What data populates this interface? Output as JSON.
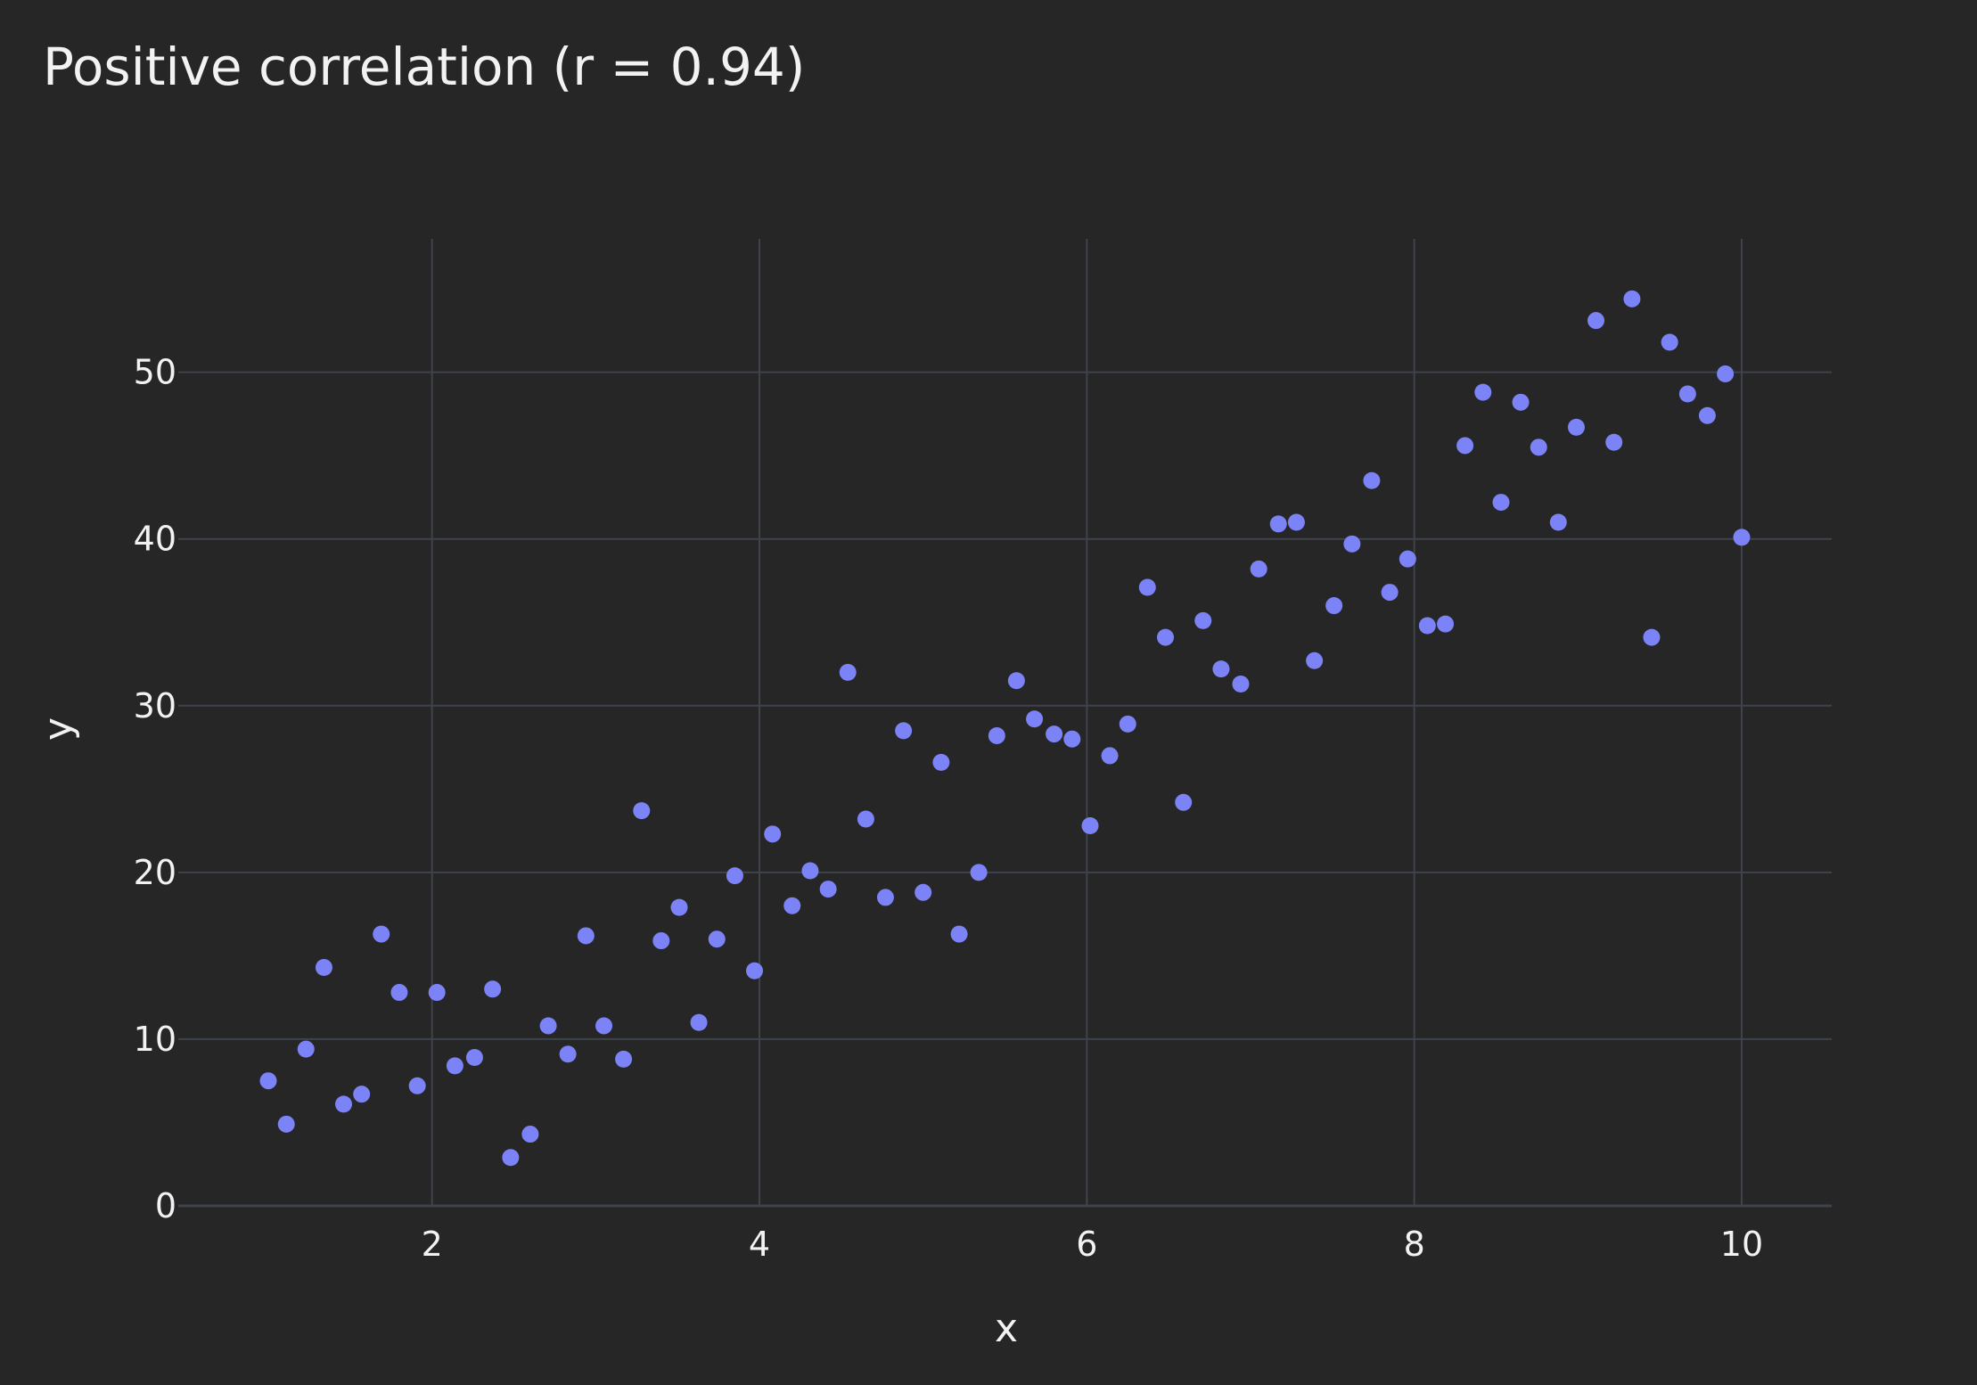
{
  "chart_data": {
    "type": "scatter",
    "title": "Positive correlation (r = 0.94)",
    "xlabel": "x",
    "ylabel": "y",
    "xlim": [
      0.45,
      10.55
    ],
    "ylim": [
      0,
      58
    ],
    "xticks": [
      2,
      4,
      6,
      8,
      10
    ],
    "yticks": [
      0,
      10,
      20,
      30,
      40,
      50
    ],
    "xtick_labels": [
      "2",
      "4",
      "6",
      "8",
      "10"
    ],
    "ytick_labels": [
      "0",
      "10",
      "20",
      "30",
      "40",
      "50"
    ],
    "grid": true,
    "legend": "none",
    "colors": {
      "background": "#262626",
      "grid": "#3e434c",
      "marker": "#7b83f7",
      "text": "#f2f2f2"
    },
    "x": [
      1.0,
      1.11,
      1.23,
      1.34,
      1.46,
      1.57,
      1.69,
      1.8,
      1.91,
      2.03,
      2.14,
      2.26,
      2.37,
      2.48,
      2.6,
      2.71,
      2.83,
      2.94,
      3.05,
      3.17,
      3.28,
      3.4,
      3.51,
      3.63,
      3.74,
      3.85,
      3.97,
      4.08,
      4.2,
      4.31,
      4.42,
      4.54,
      4.65,
      4.77,
      4.88,
      5.0,
      5.11,
      5.22,
      5.34,
      5.45,
      5.57,
      5.68,
      5.8,
      5.91,
      6.02,
      6.14,
      6.25,
      6.37,
      6.48,
      6.59,
      6.71,
      6.82,
      6.94,
      7.05,
      7.17,
      7.28,
      7.39,
      7.51,
      7.62,
      7.74,
      7.85,
      7.96,
      8.08,
      8.19,
      8.31,
      8.42,
      8.53,
      8.65,
      8.76,
      8.88,
      8.99,
      9.11,
      9.22,
      9.33,
      9.45,
      9.56,
      9.67,
      9.79,
      9.9,
      10.0
    ],
    "y": [
      7.5,
      4.9,
      9.4,
      14.3,
      6.1,
      6.7,
      16.3,
      12.8,
      7.2,
      12.8,
      8.4,
      8.9,
      13.0,
      2.9,
      4.3,
      10.8,
      9.1,
      16.2,
      10.8,
      8.8,
      23.7,
      15.9,
      17.9,
      11.0,
      16.0,
      19.8,
      14.1,
      22.3,
      18.0,
      20.1,
      19.0,
      32.0,
      23.2,
      18.5,
      28.5,
      18.8,
      26.6,
      16.3,
      20.0,
      28.2,
      31.5,
      29.2,
      28.3,
      28.0,
      22.8,
      27.0,
      28.9,
      37.1,
      34.1,
      24.2,
      35.1,
      32.2,
      31.3,
      38.2,
      40.9,
      41.0,
      32.7,
      36.0,
      39.7,
      43.5,
      36.8,
      38.8,
      34.8,
      34.9,
      45.6,
      48.8,
      42.2,
      48.2,
      45.5,
      41.0,
      46.7,
      53.1,
      45.8,
      54.4,
      34.1,
      51.8,
      48.7,
      47.4,
      49.9,
      40.1
    ]
  }
}
